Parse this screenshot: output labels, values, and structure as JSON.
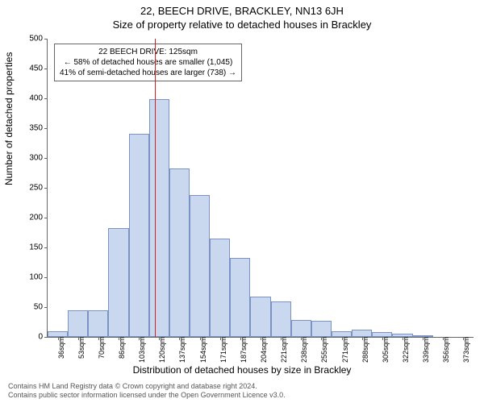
{
  "title_line1": "22, BEECH DRIVE, BRACKLEY, NN13 6JH",
  "title_line2": "Size of property relative to detached houses in Brackley",
  "ylabel": "Number of detached properties",
  "xlabel": "Distribution of detached houses by size in Brackley",
  "footer_line1": "Contains HM Land Registry data © Crown copyright and database right 2024.",
  "footer_line2": "Contains public sector information licensed under the Open Government Licence v3.0.",
  "chart": {
    "type": "bar",
    "ylim": [
      0,
      500
    ],
    "ytick_step": 50,
    "xticks": [
      36,
      53,
      70,
      86,
      103,
      120,
      137,
      154,
      171,
      187,
      204,
      221,
      238,
      255,
      271,
      288,
      305,
      322,
      339,
      356,
      373
    ],
    "xtick_suffix": "sqm",
    "values": [
      10,
      45,
      45,
      183,
      340,
      398,
      283,
      238,
      165,
      132,
      68,
      60,
      29,
      27,
      10,
      12,
      8,
      5,
      2,
      0,
      0
    ],
    "bar_color": "#c9d8ef",
    "bar_border": "#7a93c4",
    "marker_x_index": 5.3,
    "marker_color": "#d02020",
    "background_color": "#ffffff",
    "title_fontsize": 13,
    "label_fontsize": 12,
    "tick_fontsize": 10
  },
  "annotation": {
    "line1": "22 BEECH DRIVE: 125sqm",
    "line2": "← 58% of detached houses are smaller (1,045)",
    "line3": "41% of semi-detached houses are larger (738) →"
  }
}
